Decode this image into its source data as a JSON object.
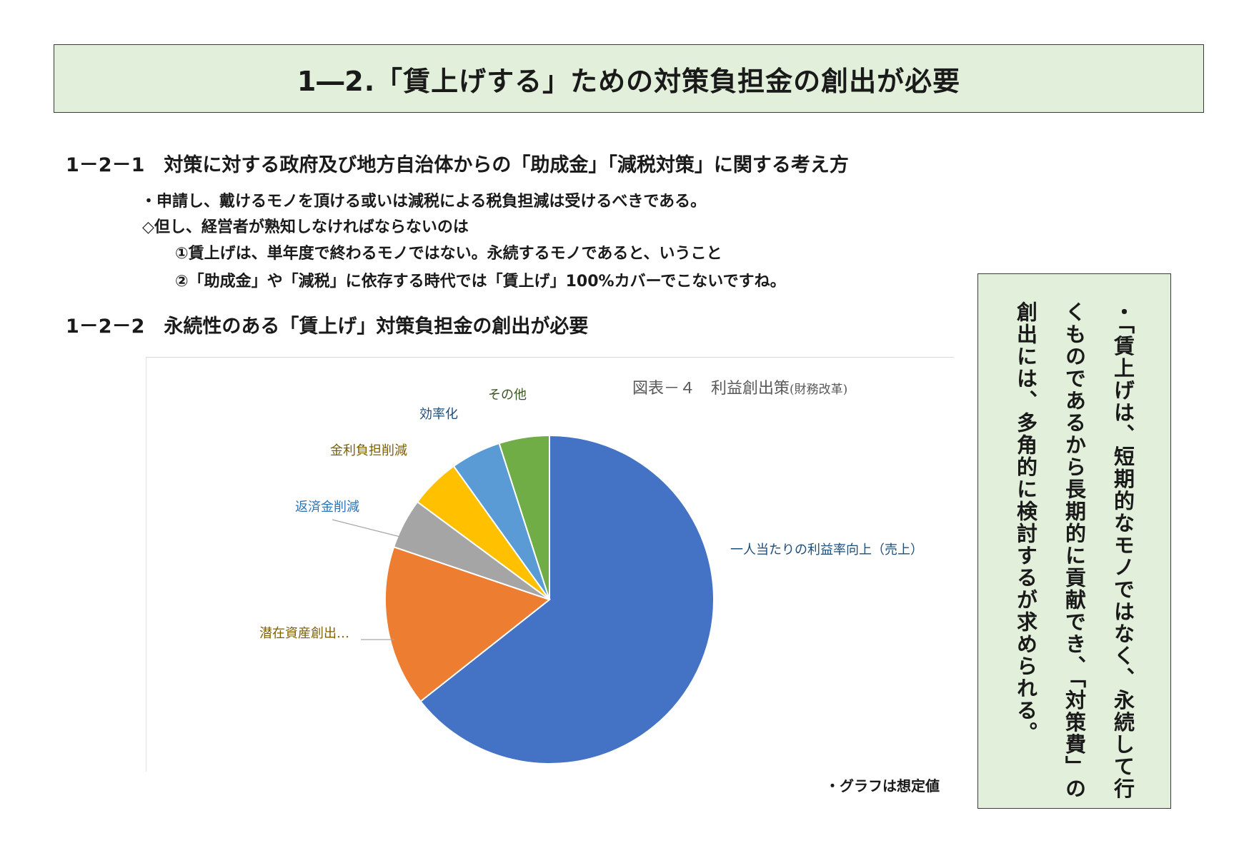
{
  "title": "1―2.「賃上げする」ための対策負担金の創出が必要",
  "section1": {
    "heading": "1－2－1　対策に対する政府及び地方自治体からの「助成金」「減税対策」に関する考え方",
    "lines": [
      "・申請し、戴けるモノを頂ける或いは減税による税負担減は受けるべきである。",
      "◇但し、経営者が熟知しなければならないのは",
      "①賃上げは、単年度で終わるモノではない。永続するモノであると、いうこと",
      "②「助成金」や「減税」に依存する時代では「賃上げ」100%カバーでこないですね。"
    ]
  },
  "section2": {
    "heading": "1－2－2　永続性のある「賃上げ」対策負担金の創出が必要"
  },
  "chart_title": "図表－４　利益創出策",
  "chart_subtitle": "(財務改革)",
  "chart_data": {
    "type": "pie",
    "title": "図表－４　利益創出策(財務改革)",
    "categories": [
      "一人当たりの利益率向上（売上）",
      "潜在資産創出…",
      "返済金削減",
      "金利負担削減",
      "効率化",
      "その他"
    ],
    "values": [
      65,
      16,
      5,
      5,
      5,
      5
    ],
    "colors": [
      "#4472c4",
      "#ed7d31",
      "#a5a5a5",
      "#ffc000",
      "#5b9bd5",
      "#70ad47"
    ],
    "label_colors": [
      "#1f4e79",
      "#7f6000",
      "#2e75b6",
      "#7f6000",
      "#1f4e79",
      "#385723"
    ],
    "legend": "none",
    "note": "グラフは想定値"
  },
  "note_text": "・グラフは想定値",
  "side_note": "・「賃上げは、短期的なモノではなく、永続して行くものであるから長期的に貢献でき、「対策費」の創出には、多角的に検討するが求められる。"
}
